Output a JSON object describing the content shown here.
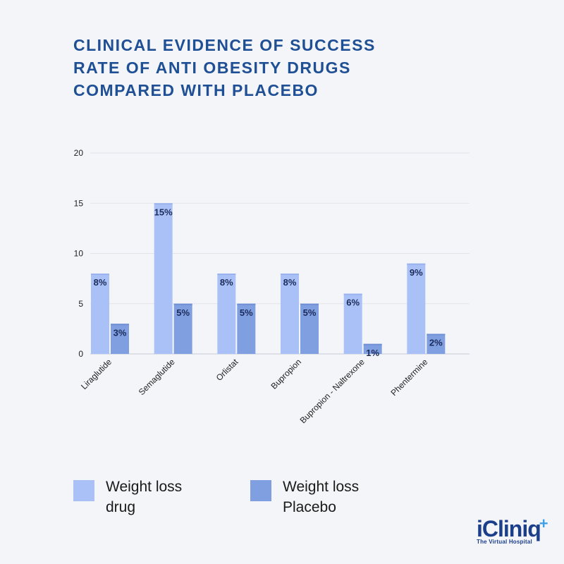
{
  "title_lines": [
    "CLINICAL EVIDENCE OF SUCCESS",
    "RATE OF ANTI OBESITY DRUGS",
    "COMPARED WITH PLACEBO"
  ],
  "chart_data": {
    "type": "bar",
    "title": "CLINICAL EVIDENCE OF SUCCESS RATE OF ANTI OBESITY DRUGS COMPARED WITH PLACEBO",
    "categories": [
      "Liraglutide",
      "Semaglutide",
      "Orlistat",
      "Bupropion",
      "Bupropion - Naltrexone",
      "Phentermine"
    ],
    "series": [
      {
        "name": "Weight loss drug",
        "values": [
          8,
          15,
          8,
          8,
          6,
          9
        ],
        "labels": [
          "8%",
          "15%",
          "8%",
          "8%",
          "6%",
          "9%"
        ],
        "color": "#a9c1f7"
      },
      {
        "name": "Weight loss Placebo",
        "values": [
          3,
          5,
          5,
          5,
          1,
          2
        ],
        "labels": [
          "3%",
          "5%",
          "5%",
          "5%",
          "1%",
          "2%"
        ],
        "color": "#7f9fe1"
      }
    ],
    "yticks": [
      "0",
      "5",
      "10",
      "15",
      "20"
    ],
    "ylim": [
      0,
      20
    ],
    "grid": true,
    "legend_position": "bottom"
  },
  "legend": [
    {
      "line1": "Weight loss",
      "line2": "drug",
      "color": "#a9c1f7"
    },
    {
      "line1": "Weight loss",
      "line2": "Placebo",
      "color": "#7f9fe1"
    }
  ],
  "logo": {
    "word": "iCliniq",
    "plus": "+",
    "tagline": "The Virtual Hospital"
  },
  "colors": {
    "title": "#1f4f95",
    "label": "#1c2b5a",
    "grid": "#e1e3ea",
    "axis": "#c9ccd6"
  }
}
